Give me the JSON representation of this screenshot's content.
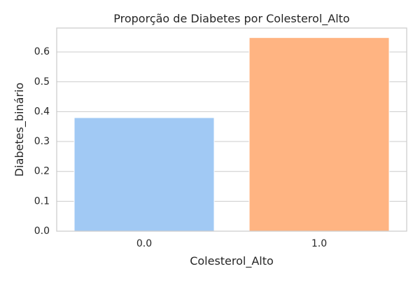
{
  "chart_data": {
    "type": "bar",
    "title": "Proporção de Diabetes por Colesterol_Alto",
    "xlabel": "Colesterol_Alto",
    "ylabel": "Diabetes_binário",
    "categories": [
      "0.0",
      "1.0"
    ],
    "values": [
      0.38,
      0.648
    ],
    "ylim": [
      0,
      0.68
    ],
    "yticks": [
      "0.0",
      "0.1",
      "0.2",
      "0.3",
      "0.4",
      "0.5",
      "0.6"
    ],
    "grid": true,
    "legend": "none",
    "colors": [
      "#a1c9f4",
      "#ffb482"
    ],
    "axes_edge_color": "#cccccc",
    "grid_color": "#cccccc",
    "text_color": "#262626"
  }
}
